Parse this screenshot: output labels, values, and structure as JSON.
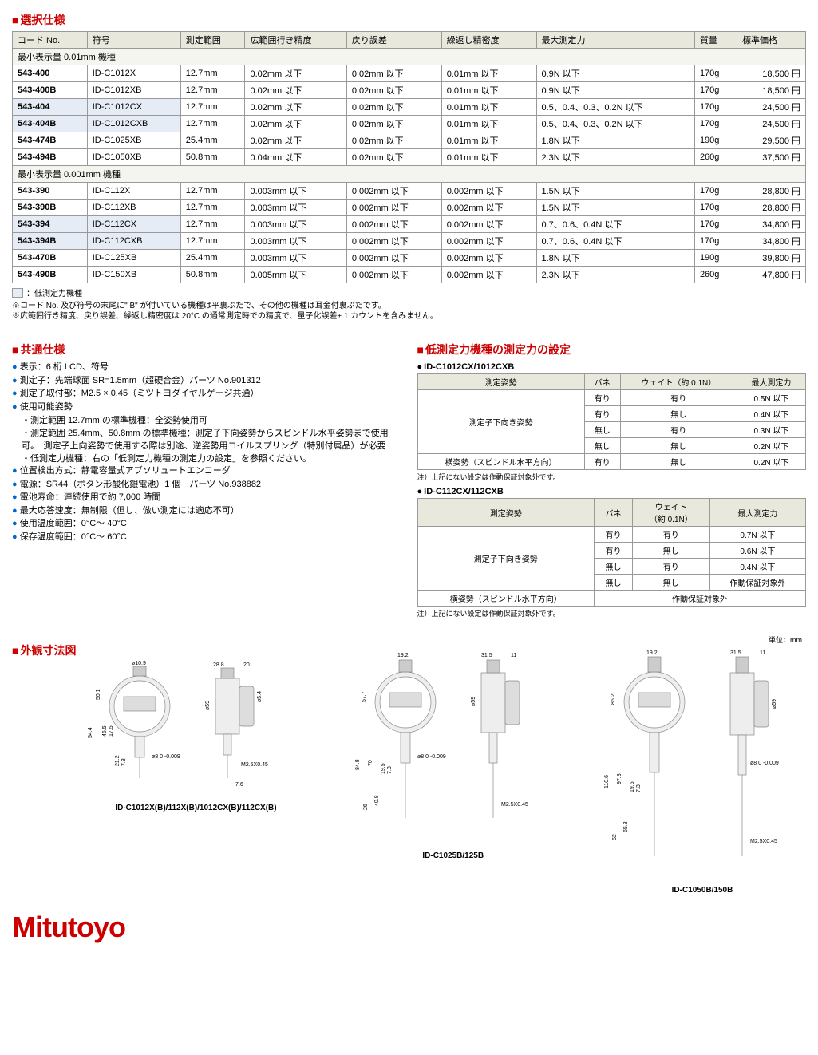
{
  "sections": {
    "selection": "選択仕様",
    "common": "共通仕様",
    "force": "低測定力機種の測定力の設定",
    "dimensions": "外観寸法図"
  },
  "spec_table": {
    "headers": [
      "コード No.",
      "符号",
      "測定範囲",
      "広範囲行き精度",
      "戻り誤差",
      "繰返し精密度",
      "最大測定力",
      "質量",
      "標準価格"
    ],
    "group1_label": "最小表示量 0.01mm 機種",
    "group1": [
      {
        "code": "543-400",
        "sym": "ID-C1012X",
        "range": "12.7mm",
        "acc": "0.02mm 以下",
        "ret": "0.02mm 以下",
        "rep": "0.01mm 以下",
        "force": "0.9N 以下",
        "mass": "170g",
        "price": "18,500 円",
        "hl": false
      },
      {
        "code": "543-400B",
        "sym": "ID-C1012XB",
        "range": "12.7mm",
        "acc": "0.02mm 以下",
        "ret": "0.02mm 以下",
        "rep": "0.01mm 以下",
        "force": "0.9N 以下",
        "mass": "170g",
        "price": "18,500 円",
        "hl": false
      },
      {
        "code": "543-404",
        "sym": "ID-C1012CX",
        "range": "12.7mm",
        "acc": "0.02mm 以下",
        "ret": "0.02mm 以下",
        "rep": "0.01mm 以下",
        "force": "0.5、0.4、0.3、0.2N 以下",
        "mass": "170g",
        "price": "24,500 円",
        "hl": true
      },
      {
        "code": "543-404B",
        "sym": "ID-C1012CXB",
        "range": "12.7mm",
        "acc": "0.02mm 以下",
        "ret": "0.02mm 以下",
        "rep": "0.01mm 以下",
        "force": "0.5、0.4、0.3、0.2N 以下",
        "mass": "170g",
        "price": "24,500 円",
        "hl": true
      },
      {
        "code": "543-474B",
        "sym": "ID-C1025XB",
        "range": "25.4mm",
        "acc": "0.02mm 以下",
        "ret": "0.02mm 以下",
        "rep": "0.01mm 以下",
        "force": "1.8N 以下",
        "mass": "190g",
        "price": "29,500 円",
        "hl": false
      },
      {
        "code": "543-494B",
        "sym": "ID-C1050XB",
        "range": "50.8mm",
        "acc": "0.04mm 以下",
        "ret": "0.02mm 以下",
        "rep": "0.01mm 以下",
        "force": "2.3N 以下",
        "mass": "260g",
        "price": "37,500 円",
        "hl": false
      }
    ],
    "group2_label": "最小表示量 0.001mm 機種",
    "group2": [
      {
        "code": "543-390",
        "sym": "ID-C112X",
        "range": "12.7mm",
        "acc": "0.003mm 以下",
        "ret": "0.002mm 以下",
        "rep": "0.002mm 以下",
        "force": "1.5N 以下",
        "mass": "170g",
        "price": "28,800 円",
        "hl": false
      },
      {
        "code": "543-390B",
        "sym": "ID-C112XB",
        "range": "12.7mm",
        "acc": "0.003mm 以下",
        "ret": "0.002mm 以下",
        "rep": "0.002mm 以下",
        "force": "1.5N 以下",
        "mass": "170g",
        "price": "28,800 円",
        "hl": false
      },
      {
        "code": "543-394",
        "sym": "ID-C112CX",
        "range": "12.7mm",
        "acc": "0.003mm 以下",
        "ret": "0.002mm 以下",
        "rep": "0.002mm 以下",
        "force": "0.7、0.6、0.4N 以下",
        "mass": "170g",
        "price": "34,800 円",
        "hl": true
      },
      {
        "code": "543-394B",
        "sym": "ID-C112CXB",
        "range": "12.7mm",
        "acc": "0.003mm 以下",
        "ret": "0.002mm 以下",
        "rep": "0.002mm 以下",
        "force": "0.7、0.6、0.4N 以下",
        "mass": "170g",
        "price": "34,800 円",
        "hl": true
      },
      {
        "code": "543-470B",
        "sym": "ID-C125XB",
        "range": "25.4mm",
        "acc": "0.003mm 以下",
        "ret": "0.002mm 以下",
        "rep": "0.002mm 以下",
        "force": "1.8N 以下",
        "mass": "190g",
        "price": "39,800 円",
        "hl": false
      },
      {
        "code": "543-490B",
        "sym": "ID-C150XB",
        "range": "50.8mm",
        "acc": "0.005mm 以下",
        "ret": "0.002mm 以下",
        "rep": "0.002mm 以下",
        "force": "2.3N 以下",
        "mass": "260g",
        "price": "47,800 円",
        "hl": false
      }
    ]
  },
  "legend": "：低測定力機種",
  "notes": [
    "※コード No. 及び符号の末尾に\" B\" が付いている機種は平裏ぶたで、その他の機種は耳金付裏ぶたです。",
    "※広範囲行き精度、戻り誤差、繰返し精密度は 20°C の通常測定時での精度で、量子化誤差± 1 カウントを含みません。"
  ],
  "common_spec": [
    "表示：6 桁 LCD、符号",
    "測定子：先端球面 SR=1.5mm（超硬合金）パーツ No.901312",
    "測定子取付部：M2.5 × 0.45（ミツトヨダイヤルゲージ共通）",
    "使用可能姿勢"
  ],
  "posture_sub": [
    "測定範囲 12.7mm の標準機種：全姿勢使用可",
    "測定範囲 25.4mm、50.8mm の標準機種：測定子下向姿勢からスピンドル水平姿勢まで使用可。　測定子上向姿勢で使用する際は別途、逆姿勢用コイルスプリング（特別付属品）が必要",
    "低測定力機種：右の「低測定力機種の測定力の設定」を参照ください。"
  ],
  "common_spec2": [
    "位置検出方式：静電容量式アブソリュートエンコーダ",
    "電源：SR44（ボタン形酸化銀電池）1 個　パーツ No.938882",
    "電池寿命：連続使用で約 7,000 時間",
    "最大応答速度：無制限（但し、倣い測定には適応不可）",
    "使用温度範囲：0°C～ 40°C",
    "保存温度範囲：0°C～ 60°C"
  ],
  "force_table1": {
    "title": "ID-C1012CX/1012CXB",
    "headers": [
      "測定姿勢",
      "バネ",
      "ウェイト（約 0.1N）",
      "最大測定力"
    ],
    "rows": [
      {
        "posture": "",
        "spring": "有り",
        "weight": "有り",
        "force": "0.5N 以下"
      },
      {
        "posture": "",
        "spring": "有り",
        "weight": "無し",
        "force": "0.4N 以下"
      },
      {
        "posture": "",
        "spring": "無し",
        "weight": "有り",
        "force": "0.3N 以下"
      },
      {
        "posture": "",
        "spring": "無し",
        "weight": "無し",
        "force": "0.2N 以下"
      }
    ],
    "row_span_label": "測定子下向き姿勢",
    "last_row": {
      "posture": "横姿勢（スピンドル水平方向）",
      "spring": "有り",
      "weight": "無し",
      "force": "0.2N 以下"
    },
    "note": "注）上記にない設定は作動保証対象外です。"
  },
  "force_table2": {
    "title": "ID-C112CX/112CXB",
    "headers": [
      "測定姿勢",
      "バネ",
      "ウェイト\n（約 0.1N）",
      "最大測定力"
    ],
    "rows": [
      {
        "posture": "",
        "spring": "有り",
        "weight": "有り",
        "force": "0.7N 以下"
      },
      {
        "posture": "",
        "spring": "有り",
        "weight": "無し",
        "force": "0.6N 以下"
      },
      {
        "posture": "",
        "spring": "無し",
        "weight": "有り",
        "force": "0.4N 以下"
      },
      {
        "posture": "",
        "spring": "無し",
        "weight": "無し",
        "force": "作動保証対象外"
      }
    ],
    "row_span_label": "測定子下向き姿勢",
    "last_row": {
      "posture": "横姿勢（スピンドル水平方向）",
      "merged": "作動保証対象外"
    },
    "note": "注）上記にない設定は作動保証対象外です。"
  },
  "dim_unit": "単位：mm",
  "dim_captions": [
    "ID-C1012X(B)/112X(B)/1012CX(B)/112CX(B)",
    "ID-C1025B/125B",
    "ID-C1050B/150B"
  ],
  "dim_labels": {
    "d1_top": "ø10.9",
    "d1_w1": "28.8",
    "d1_w2": "20",
    "d1_h1": "50.1",
    "d1_h2": "54.4",
    "d1_h3": "46.5",
    "d1_h4": "17.5",
    "d1_h5": "21.2",
    "d1_h6": "7.3",
    "d1_d": "ø59",
    "d1_s": "ø5.4",
    "d1_stem": "ø8 0 -0.009",
    "d1_thread": "M2.5X0.45",
    "d1_tip": "7.6",
    "d2_w1": "19.2",
    "d2_w2": "31.5",
    "d2_w3": "11",
    "d2_h1": "57.7",
    "d2_h2": "84.8",
    "d2_h3": "70",
    "d2_h4": "19.5",
    "d2_h5": "7.3",
    "d2_h6": "40.8",
    "d2_h7": "26",
    "d2_d": "ø59",
    "d2_stem": "ø8 0 -0.009",
    "d2_thread": "M2.5X0.45",
    "d3_w1": "19.2",
    "d3_w2": "31.5",
    "d3_w3": "11",
    "d3_h1": "85.2",
    "d3_h2": "110.6",
    "d3_h3": "97.3",
    "d3_h4": "65.3",
    "d3_h5": "52",
    "d3_h6": "19.5",
    "d3_h7": "7.3",
    "d3_d": "ø59",
    "d3_stem": "ø8 0 -0.009",
    "d3_thread": "M2.5X0.45"
  },
  "logo": "Mitutoyo",
  "colors": {
    "red": "#c00",
    "header_bg": "#e8e8dc",
    "highlight_bg": "#e6ecf5",
    "border": "#999"
  }
}
